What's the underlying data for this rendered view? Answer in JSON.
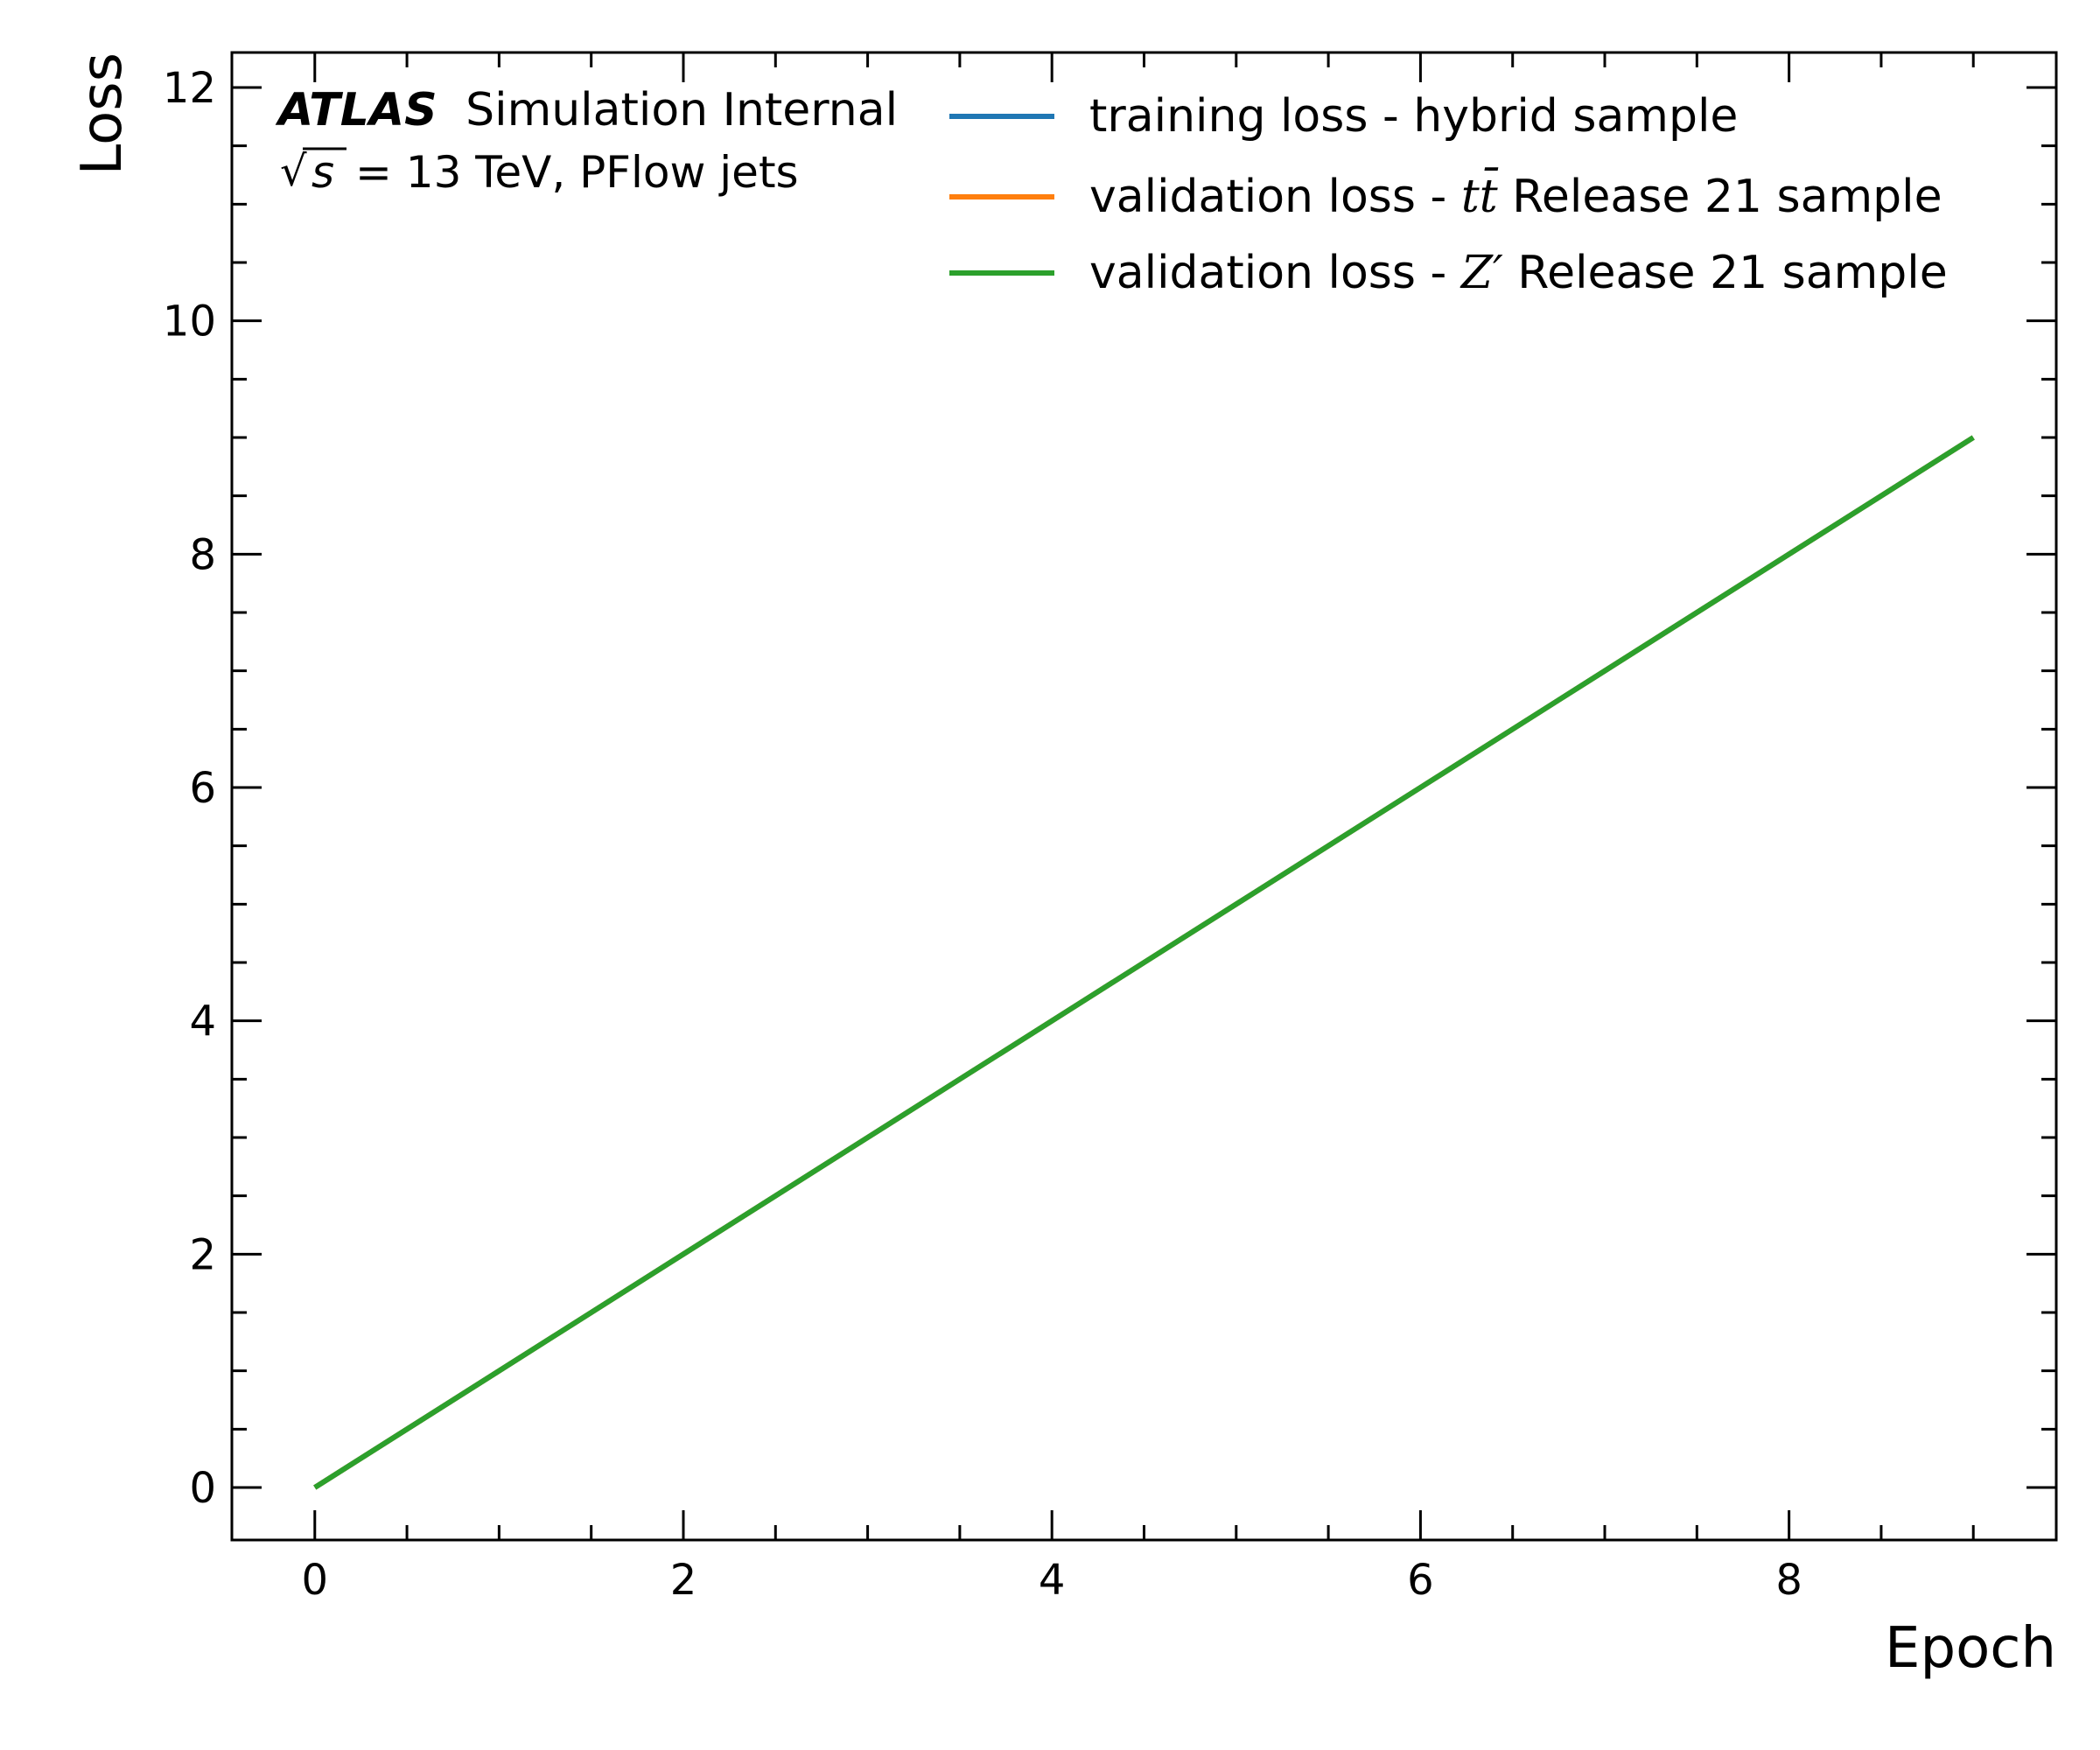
{
  "chart_data": {
    "type": "line",
    "xlabel": "Epoch",
    "ylabel": "Loss",
    "xlim": [
      -0.45,
      9.45
    ],
    "ylim": [
      -0.45,
      12.3
    ],
    "xticks": [
      0,
      2,
      4,
      6,
      8
    ],
    "yticks": [
      0,
      2,
      4,
      6,
      8,
      10,
      12
    ],
    "x_minor_step": 0.5,
    "y_minor_step": 0.5,
    "grid": false,
    "legend_position": "top-right",
    "annotation": {
      "experiment": "ATLAS",
      "status": "Simulation Internal",
      "energy_line_rest": "= 13 TeV, PFlow jets"
    },
    "x": [
      0,
      1,
      2,
      3,
      4,
      5,
      6,
      7,
      8,
      9
    ],
    "series": [
      {
        "legend_prefix": "training loss - hybrid sample",
        "legend_math": "",
        "legend_suffix": "",
        "color": "#1f77b4",
        "values": [
          0,
          1,
          2,
          3,
          4,
          5,
          6,
          7,
          8,
          9
        ]
      },
      {
        "legend_prefix": "validation loss - ",
        "legend_math": "tt̄",
        "legend_suffix": " Release 21 sample",
        "color": "#ff7f0e",
        "values": [
          0,
          1,
          2,
          3,
          4,
          5,
          6,
          7,
          8,
          9
        ]
      },
      {
        "legend_prefix": "validation loss - ",
        "legend_math": "Z′",
        "legend_suffix": " Release 21 sample",
        "color": "#2ca02c",
        "values": [
          0,
          1,
          2,
          3,
          4,
          5,
          6,
          7,
          8,
          9
        ]
      }
    ]
  }
}
